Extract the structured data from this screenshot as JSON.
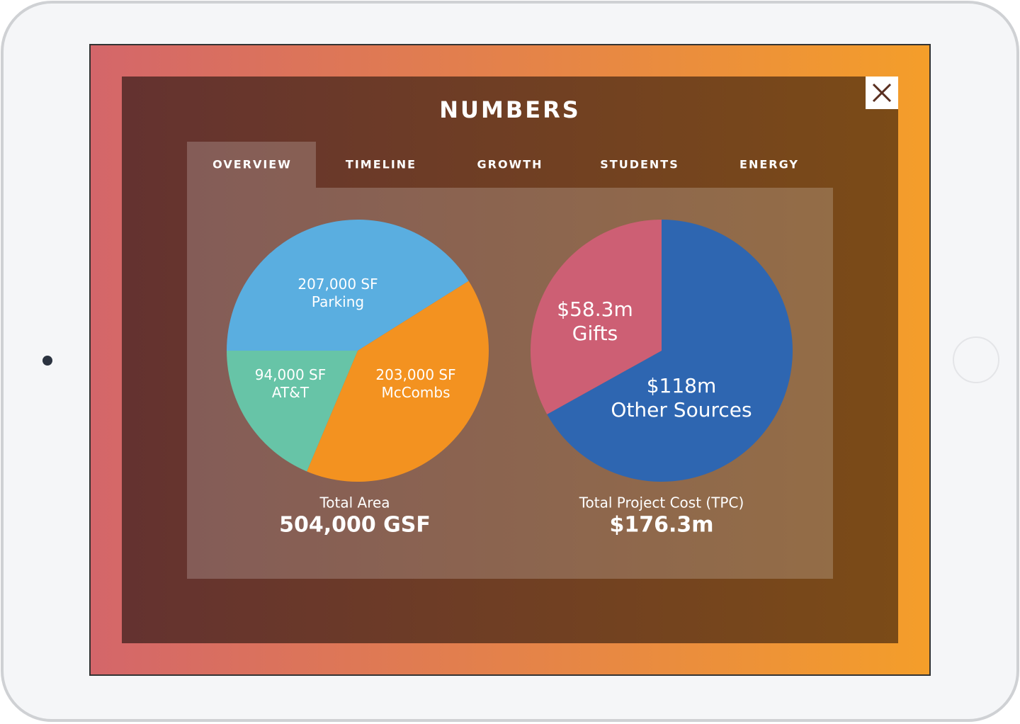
{
  "title": "NUMBERS",
  "tabs": [
    "OVERVIEW",
    "TIMELINE",
    "GROWTH",
    "STUDENTS",
    "ENERGY"
  ],
  "chart_data": [
    {
      "type": "pie",
      "categories": [
        "Parking",
        "McCombs",
        "AT&T"
      ],
      "values": [
        207000,
        203000,
        94000
      ],
      "value_labels": [
        "207,000 SF",
        "203,000 SF",
        "94,000 SF"
      ],
      "colors": [
        "#5aaee0",
        "#f39220",
        "#67c4a7"
      ],
      "caption": "Total Area",
      "total": "504,000 GSF"
    },
    {
      "type": "pie",
      "categories": [
        "Other Sources",
        "Gifts"
      ],
      "values": [
        118,
        58.3
      ],
      "value_labels": [
        "$118m",
        "$58.3m"
      ],
      "colors": [
        "#2e66b1",
        "#cd5f74"
      ],
      "caption": "Total Project Cost (TPC)",
      "total": "$176.3m"
    }
  ]
}
